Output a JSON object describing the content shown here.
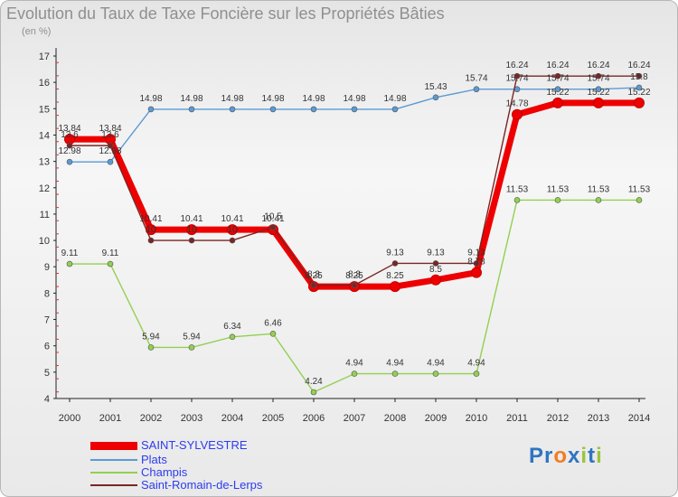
{
  "header": {
    "title": "Evolution du Taux de Taxe Foncière sur les Propriétés Bâties",
    "subtitle": "(en %)"
  },
  "chart_data": {
    "type": "line",
    "title": "Evolution du Taux de Taxe Foncière sur les Propriétés Bâties",
    "ylabel": "(en %)",
    "xlabel": "",
    "categories": [
      "2000",
      "2001",
      "2002",
      "2003",
      "2004",
      "2005",
      "2006",
      "2007",
      "2008",
      "2009",
      "2010",
      "2011",
      "2012",
      "2013",
      "2014"
    ],
    "ylim": [
      4,
      17
    ],
    "yticks": [
      4,
      5,
      6,
      7,
      8,
      9,
      10,
      11,
      12,
      13,
      14,
      15,
      16,
      17
    ],
    "grid": false,
    "legend_position": "bottom-left",
    "series": [
      {
        "name": "SAINT-SYLVESTRE",
        "color": "#ee0000",
        "values": [
          13.84,
          13.84,
          10.41,
          10.41,
          10.41,
          10.41,
          8.25,
          8.25,
          8.25,
          8.5,
          8.78,
          14.78,
          15.22,
          15.22,
          15.22
        ],
        "labels": [
          "13.84",
          "13.84",
          "10.41",
          "10.41",
          "10.41",
          "10.41",
          "8.25",
          "8.25",
          "8.25",
          "8.5",
          "8.78",
          "14.78",
          "15.22",
          "15.22",
          "15.22"
        ]
      },
      {
        "name": "Plats",
        "color": "#5b9bd5",
        "values": [
          12.98,
          12.98,
          14.98,
          14.98,
          14.98,
          14.98,
          14.98,
          14.98,
          14.98,
          15.43,
          15.74,
          15.74,
          15.74,
          15.74,
          15.8
        ],
        "labels": [
          "12.98",
          "12.98",
          "14.98",
          "14.98",
          "14.98",
          "14.98",
          "14.98",
          "14.98",
          "14.98",
          "15.43",
          "15.74",
          "15.74",
          "15.74",
          "15.74",
          "15.8"
        ]
      },
      {
        "name": "Champis",
        "color": "#92d050",
        "values": [
          9.11,
          9.11,
          5.94,
          5.94,
          6.34,
          6.46,
          4.24,
          4.94,
          4.94,
          4.94,
          4.94,
          11.53,
          11.53,
          11.53,
          11.53
        ],
        "labels": [
          "9.11",
          "9.11",
          "5.94",
          "5.94",
          "6.34",
          "6.46",
          "4.24",
          "4.94",
          "4.94",
          "4.94",
          "4.94",
          "11.53",
          "11.53",
          "11.53",
          "11.53"
        ]
      },
      {
        "name": "Saint-Romain-de-Lerps",
        "color": "#7b2525",
        "values": [
          13.6,
          13.6,
          10,
          10,
          10,
          10.5,
          8.3,
          8.3,
          9.13,
          9.13,
          9.13,
          16.24,
          16.24,
          16.24,
          16.24
        ],
        "labels": [
          "13.6",
          "13.6",
          "10",
          "10",
          "10",
          "10.5",
          "8.3",
          "8.3",
          "9.13",
          "9.13",
          "9.13",
          "16.24",
          "16.24",
          "16.24",
          "16.24"
        ]
      }
    ]
  },
  "logo": {
    "letters": [
      {
        "ch": "P",
        "color": "#2f74c0"
      },
      {
        "ch": "r",
        "color": "#2f74c0"
      },
      {
        "ch": "o",
        "color": "#f47b20"
      },
      {
        "ch": "x",
        "color": "#2f74c0"
      },
      {
        "ch": "i",
        "color": "#9cc43d"
      },
      {
        "ch": "t",
        "color": "#2f74c0"
      },
      {
        "ch": "i",
        "color": "#9cc43d"
      }
    ]
  }
}
